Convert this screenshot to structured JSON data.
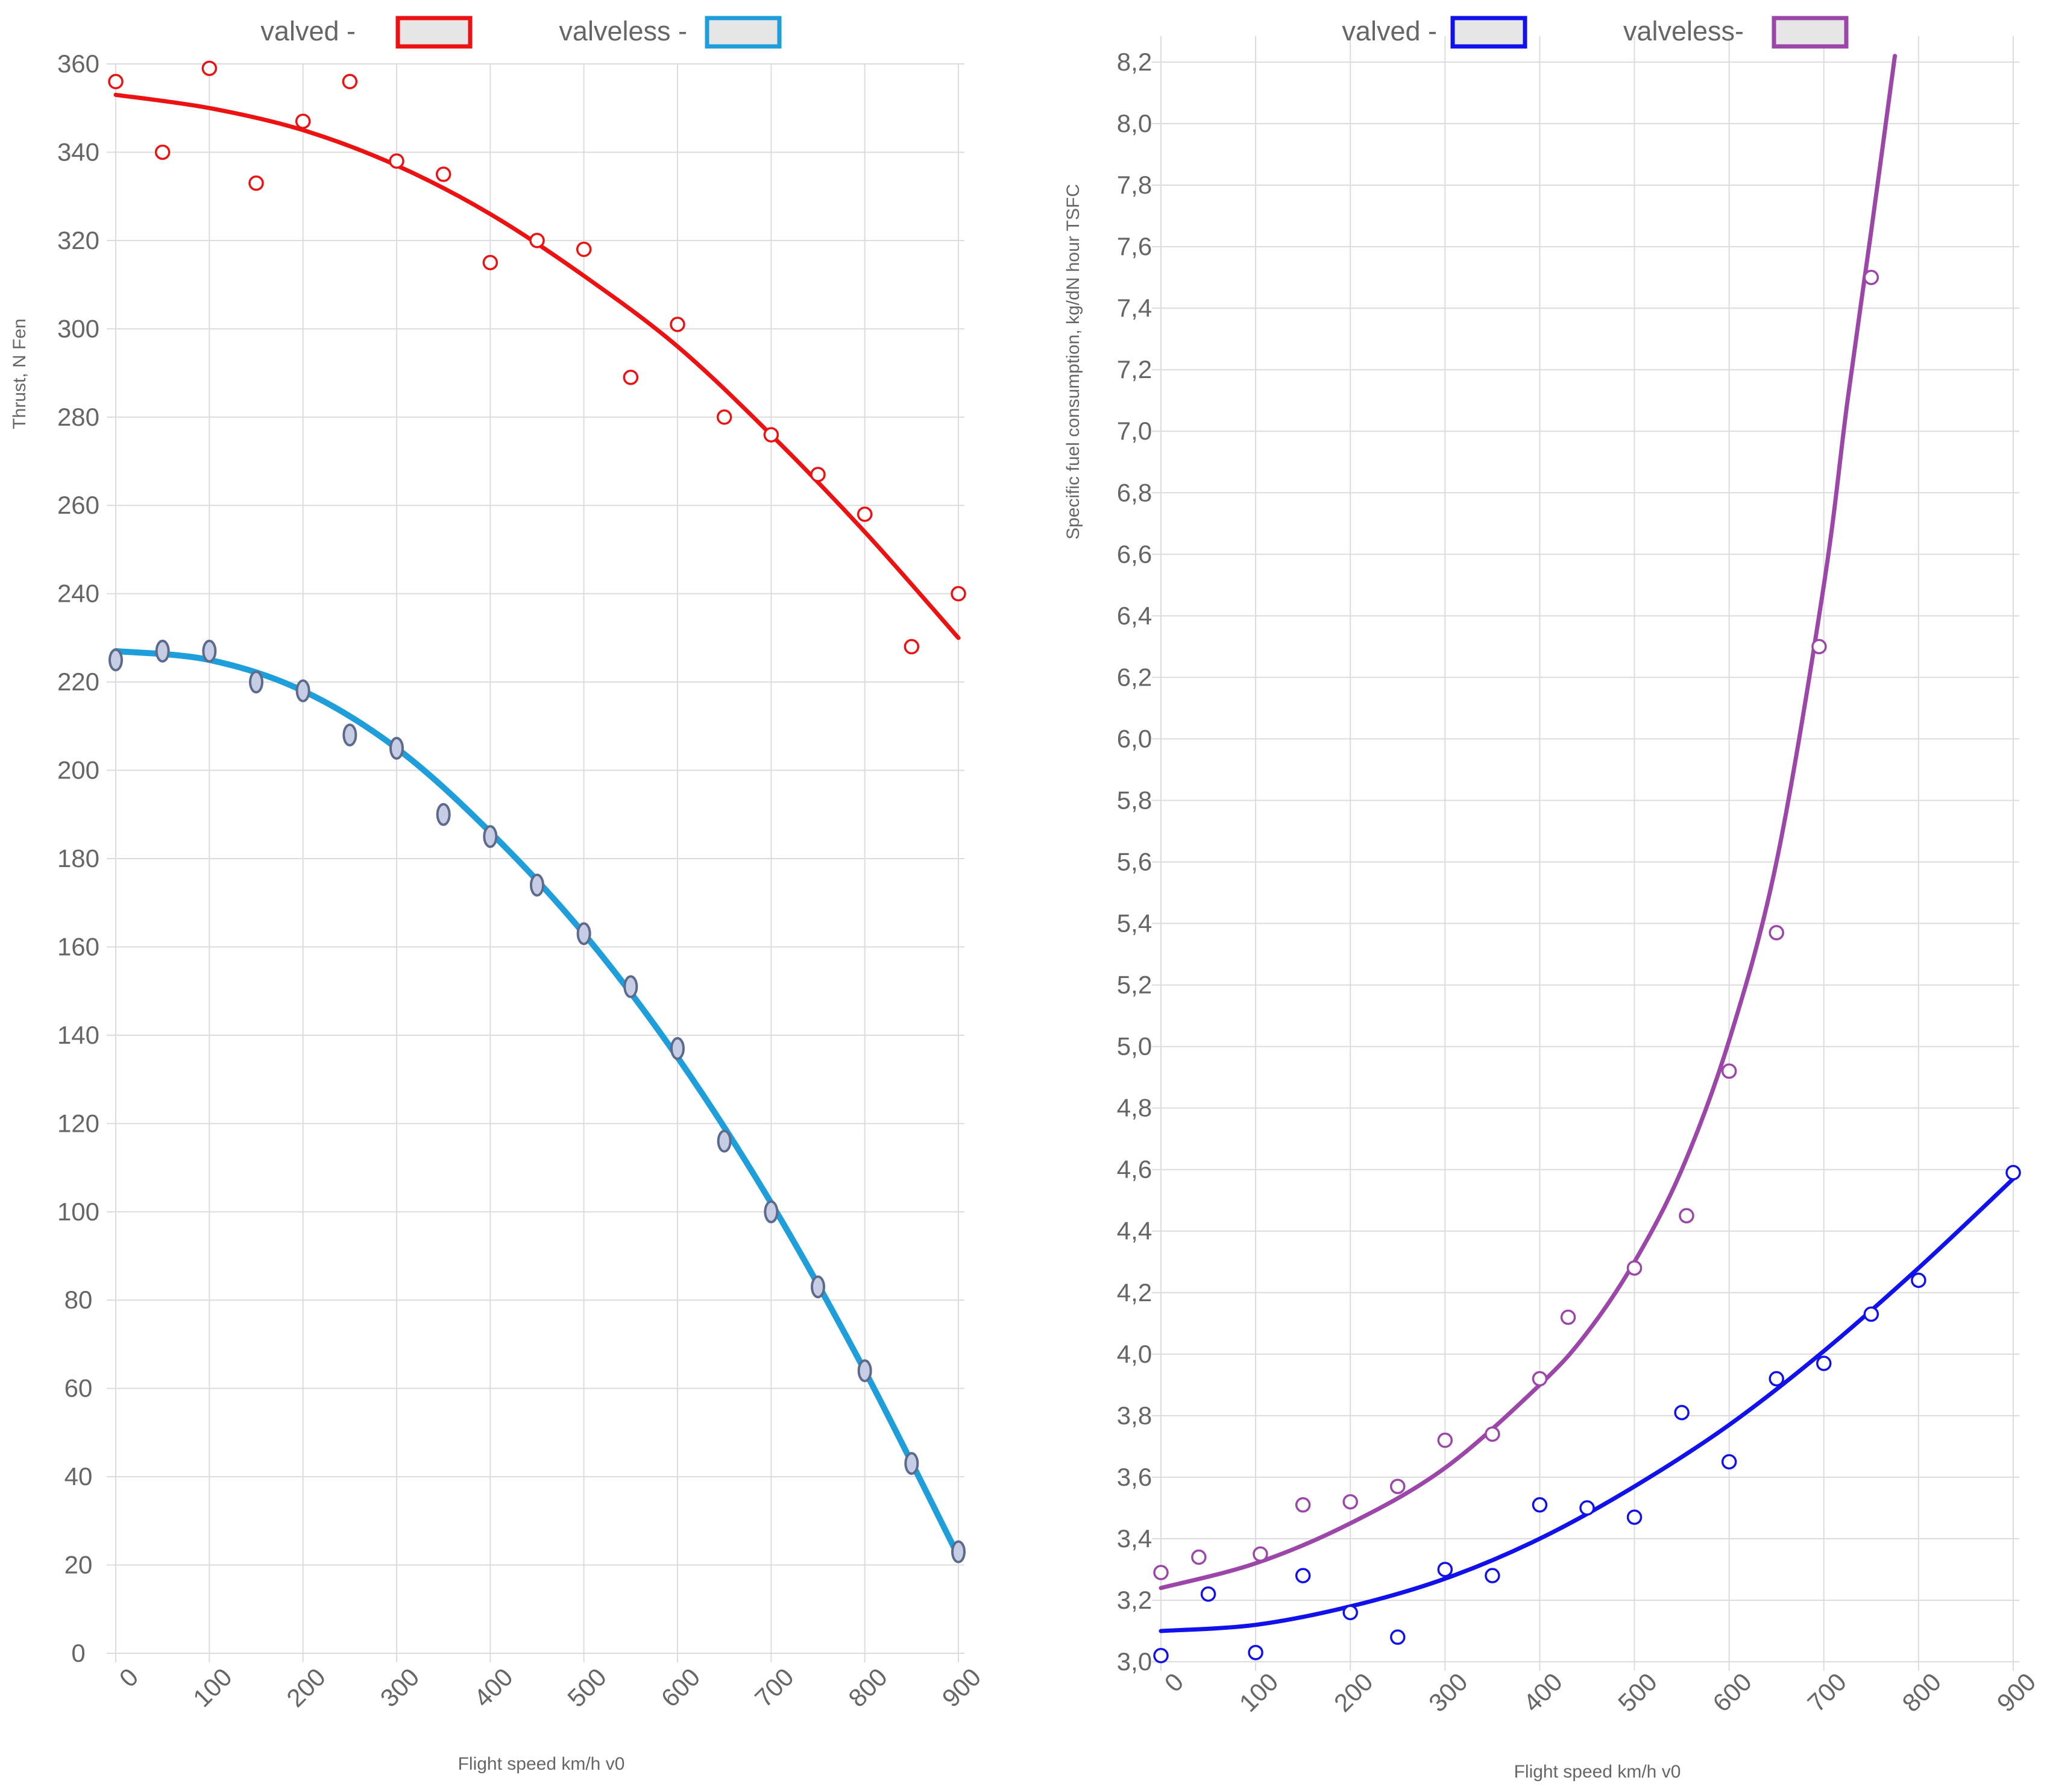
{
  "chart_data": [
    {
      "type": "line",
      "xlabel": "Flight speed km/h v0",
      "ylabel": "Thrust, N Fen",
      "xlim": [
        0,
        900
      ],
      "ylim": [
        0,
        360
      ],
      "x_ticks": [
        "0",
        "100",
        "200",
        "300",
        "400",
        "500",
        "600",
        "700",
        "800",
        "900"
      ],
      "y_ticks": [
        "0",
        "20",
        "40",
        "60",
        "80",
        "100",
        "120",
        "140",
        "160",
        "180",
        "200",
        "220",
        "240",
        "260",
        "280",
        "300",
        "320",
        "340",
        "360"
      ],
      "grid": true,
      "legend": "top-center",
      "series": [
        {
          "name": "valved -",
          "color": "#ee1111",
          "points": {
            "x": [
              0,
              50,
              100,
              150,
              200,
              250,
              300,
              350,
              400,
              450,
              500,
              550,
              600,
              650,
              700,
              750,
              800,
              850,
              900
            ],
            "y": [
              356,
              340,
              359,
              333,
              347,
              356,
              338,
              335,
              315,
              320,
              318,
              289,
              301,
              280,
              276,
              267,
              258,
              228,
              240
            ]
          },
          "fit": {
            "x": [
              0,
              100,
              200,
              300,
              400,
              500,
              600,
              700,
              800,
              900
            ],
            "y": [
              353,
              350,
              345,
              337,
              326,
              312,
              296,
              276,
              254,
              230
            ]
          }
        },
        {
          "name": "valveless -",
          "color": "#1e9fdc",
          "points": {
            "x": [
              0,
              50,
              100,
              150,
              200,
              250,
              300,
              350,
              400,
              450,
              500,
              550,
              600,
              650,
              700,
              750,
              800,
              850,
              900
            ],
            "y": [
              225,
              227,
              227,
              220,
              218,
              208,
              205,
              190,
              185,
              174,
              163,
              151,
              137,
              116,
              100,
              83,
              64,
              43,
              23
            ]
          },
          "fit": {
            "x": [
              0,
              100,
              200,
              300,
              400,
              500,
              600,
              700,
              800,
              900
            ],
            "y": [
              227,
              225,
              218,
              205,
              186,
              163,
              135,
              102,
              64,
              22
            ]
          }
        }
      ]
    },
    {
      "type": "line",
      "xlabel": "Flight speed km/h v0",
      "ylabel": "Specific fuel consumption, kg/dN hour TSFC",
      "xlim": [
        0,
        900
      ],
      "ylim": [
        3.0,
        8.2
      ],
      "x_ticks": [
        "0",
        "100",
        "200",
        "300",
        "400",
        "500",
        "600",
        "700",
        "800",
        "900"
      ],
      "y_ticks": [
        "3,0",
        "3,2",
        "3,4",
        "3,6",
        "3,8",
        "4,0",
        "4,2",
        "4,4",
        "4,6",
        "4,8",
        "5,0",
        "5,2",
        "5,4",
        "5,6",
        "5,8",
        "6,0",
        "6,2",
        "6,4",
        "6,6",
        "6,8",
        "7,0",
        "7,2",
        "7,4",
        "7,6",
        "7,8",
        "8,0",
        "8,2"
      ],
      "grid": true,
      "legend": "top-center",
      "series": [
        {
          "name": "valved -",
          "color": "#1111ee",
          "points": {
            "x": [
              0,
              50,
              100,
              150,
              200,
              250,
              300,
              350,
              400,
              450,
              500,
              550,
              600,
              650,
              700,
              750,
              800,
              900
            ],
            "y": [
              3.02,
              3.22,
              3.03,
              3.28,
              3.16,
              3.08,
              3.3,
              3.28,
              3.51,
              3.5,
              3.47,
              3.81,
              3.65,
              3.92,
              3.97,
              4.13,
              4.24,
              4.59
            ]
          },
          "fit": {
            "x": [
              0,
              100,
              200,
              300,
              400,
              500,
              600,
              700,
              800,
              900
            ],
            "y": [
              3.1,
              3.12,
              3.18,
              3.27,
              3.4,
              3.57,
              3.77,
              4.01,
              4.28,
              4.57
            ]
          }
        },
        {
          "name": "valveless-",
          "color": "#9b46a8",
          "points": {
            "x": [
              0,
              40,
              105,
              150,
              200,
              250,
              300,
              350,
              400,
              430,
              500,
              555,
              600,
              650,
              695,
              750
            ],
            "y": [
              3.29,
              3.34,
              3.35,
              3.51,
              3.52,
              3.57,
              3.72,
              3.74,
              3.92,
              4.12,
              4.28,
              4.45,
              4.92,
              5.37,
              6.3,
              7.5
            ]
          },
          "fit": {
            "x": [
              0,
              100,
              200,
              300,
              400,
              450,
              500,
              550,
              600,
              650,
              700,
              725,
              750,
              775
            ],
            "y": [
              3.24,
              3.32,
              3.45,
              3.63,
              3.9,
              4.07,
              4.3,
              4.6,
              5.02,
              5.6,
              6.5,
              7.1,
              7.65,
              8.22
            ]
          }
        }
      ]
    }
  ]
}
